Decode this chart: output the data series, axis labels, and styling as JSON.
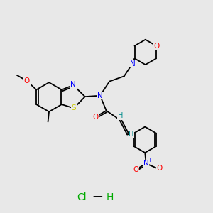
{
  "background_color": "#e8e8e8",
  "bond_color": "#000000",
  "atom_colors": {
    "O": "#ff0000",
    "N": "#0000ff",
    "S": "#cccc00",
    "C": "#000000",
    "H": "#008b8b",
    "Cl": "#00aa00"
  },
  "figsize": [
    3.0,
    3.0
  ],
  "dpi": 100
}
